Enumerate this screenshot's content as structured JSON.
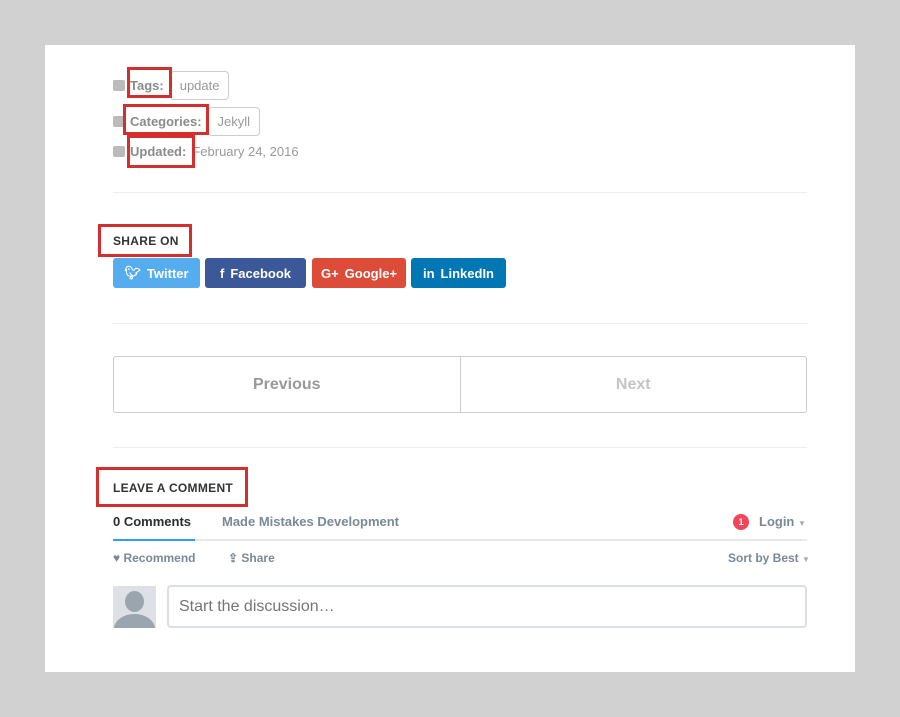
{
  "meta": {
    "tags_label": "Tags:",
    "tag": "update",
    "categories_label": "Categories:",
    "category": "Jekyll",
    "updated_label": "Updated:",
    "updated_date": "February 24, 2016"
  },
  "share": {
    "heading": "SHARE ON",
    "twitter": "Twitter",
    "facebook": "Facebook",
    "google": "Google+",
    "linkedin": "LinkedIn",
    "colors": {
      "twitter": "#55acee",
      "facebook": "#3b5998",
      "google": "#dd4b39",
      "linkedin": "#0077b5"
    }
  },
  "pager": {
    "previous": "Previous",
    "next": "Next"
  },
  "comments": {
    "heading": "LEAVE A COMMENT",
    "count_tab": "0 Comments",
    "site_tab": "Made Mistakes Development",
    "notif_count": "1",
    "login": "Login",
    "recommend": "Recommend",
    "share": "Share",
    "sort": "Sort by Best",
    "placeholder": "Start the discussion…"
  },
  "highlight_color": "#d32f2f"
}
